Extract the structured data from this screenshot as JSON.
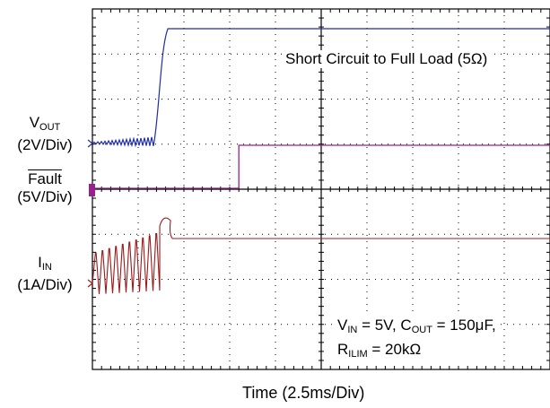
{
  "chart_data": {
    "type": "line",
    "title": "",
    "xlabel": "Time  (2.5ms/Div)",
    "grid": true,
    "x_divisions": 10,
    "y_divisions": 8,
    "time_per_div_ms": 2.5,
    "annotations": {
      "condition": "Short Circuit to Full Load (5Ω)",
      "params_line1_prefix": "V",
      "params_line1_sub1": "IN",
      "params_line1_mid": " = 5V, C",
      "params_line1_sub2": "OUT",
      "params_line1_suffix": " = 150μF,",
      "params_line2_prefix": "R",
      "params_line2_sub": "ILIM",
      "params_line2_suffix": " = 20kΩ"
    },
    "channels": [
      {
        "name_main": "V",
        "name_sub": "OUT",
        "scale": "(2V/Div)",
        "color": "#1f2fa0",
        "events": [
          {
            "t_div": 0.0,
            "state": "low ripple ~0.3V"
          },
          {
            "t_div": 1.35,
            "state": "rise"
          },
          {
            "t_div": 1.65,
            "state": "high ~5V (Full Load)"
          }
        ]
      },
      {
        "name_main": "Fault",
        "name_sub": "",
        "overline": true,
        "scale": "(5V/Div)",
        "color": "#9b1f8c",
        "events": [
          {
            "t_div": 0.0,
            "state": "low 0V"
          },
          {
            "t_div": 3.2,
            "state": "high 5V"
          }
        ]
      },
      {
        "name_main": "I",
        "name_sub": "IN",
        "scale": "(1A/Div)",
        "color": "#9c1a1a",
        "events": [
          {
            "t_div": 0.0,
            "state": "oscillating current limit pulses ~0.5–1.3A"
          },
          {
            "t_div": 1.55,
            "state": "peak ~1.4A"
          },
          {
            "t_div": 1.75,
            "state": "steady ~1A"
          }
        ]
      }
    ]
  }
}
